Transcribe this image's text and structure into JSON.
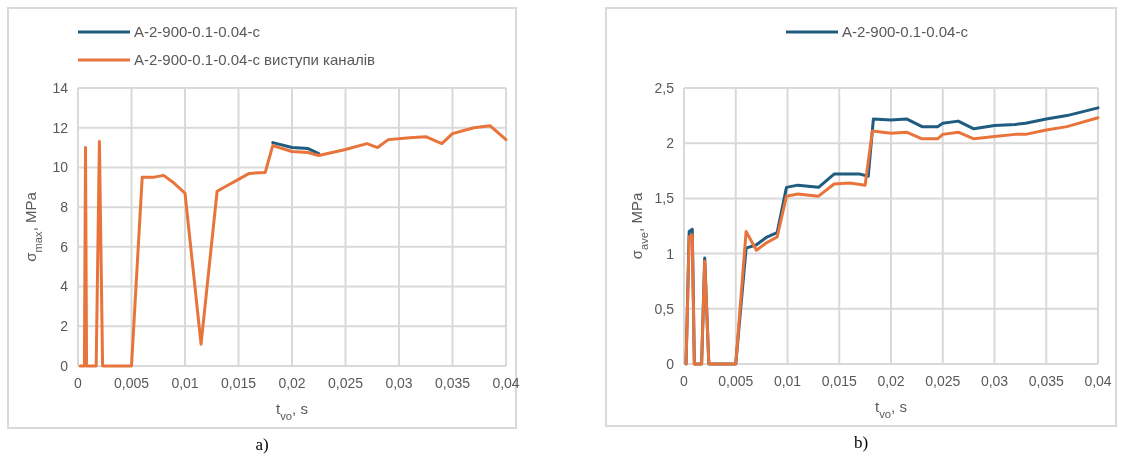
{
  "chart_data": [
    {
      "type": "line",
      "xlabel": "t$_{vo}$, s",
      "ylabel": "σ$_{max}$, MPa",
      "legend": "top",
      "grid": true,
      "annotations": [
        "a)"
      ],
      "xlim": [
        0,
        0.04
      ],
      "xticks": [
        0,
        {
          "value": 0.005,
          "label": "0,005"
        },
        {
          "value": 0.01,
          "label": "0,01"
        },
        {
          "value": 0.015,
          "label": "0,015"
        },
        {
          "value": 0.02,
          "label": "0,02"
        },
        {
          "value": 0.025,
          "label": "0,025"
        },
        {
          "value": 0.03,
          "label": "0,03"
        },
        {
          "value": 0.035,
          "label": "0,035"
        },
        {
          "value": 0.04,
          "label": "0,04"
        }
      ],
      "ylim": [
        0,
        14
      ],
      "yticks": [
        0,
        2,
        4,
        6,
        8,
        10,
        12,
        14
      ],
      "series": [
        {
          "name": "A-2-900-0.1-0.04-c",
          "color": "#1f5c7f",
          "x": [
            0.0182,
            0.02,
            0.0215,
            0.0225
          ],
          "values": [
            11.25,
            11,
            10.95,
            10.7
          ]
        },
        {
          "name": "A-2-900-0.1-0.04-c виступи каналів",
          "color": "#e8743b",
          "x": [
            0.0002,
            0.0006,
            0.0007,
            0.0008,
            0.0017,
            0.002,
            0.0023,
            0.005,
            0.006,
            0.007,
            0.008,
            0.009,
            0.01,
            0.0115,
            0.013,
            0.014,
            0.015,
            0.016,
            0.0175,
            0.0182,
            0.02,
            0.0215,
            0.0225,
            0.025,
            0.027,
            0.028,
            0.029,
            0.031,
            0.0325,
            0.034,
            0.035,
            0.037,
            0.0385,
            0.04
          ],
          "values": [
            0,
            0,
            11,
            0,
            0,
            11.3,
            0,
            0,
            9.5,
            9.5,
            9.6,
            9.2,
            8.7,
            1.1,
            8.8,
            9.1,
            9.4,
            9.7,
            9.75,
            11.1,
            10.8,
            10.75,
            10.6,
            10.9,
            11.2,
            11,
            11.4,
            11.5,
            11.55,
            11.2,
            11.7,
            12,
            12.1,
            11.4
          ]
        }
      ]
    },
    {
      "type": "line",
      "xlabel": "t$_{vo}$, s",
      "ylabel": "σ$_{ave}$, MPa",
      "legend": "top",
      "grid": true,
      "annotations": [
        "b)"
      ],
      "xlim": [
        0,
        0.04
      ],
      "xticks": [
        0,
        {
          "value": 0.005,
          "label": "0,005"
        },
        {
          "value": 0.01,
          "label": "0,01"
        },
        {
          "value": 0.015,
          "label": "0,015"
        },
        {
          "value": 0.02,
          "label": "0,02"
        },
        {
          "value": 0.025,
          "label": "0,025"
        },
        {
          "value": 0.03,
          "label": "0,03"
        },
        {
          "value": 0.035,
          "label": "0,035"
        },
        {
          "value": 0.04,
          "label": "0,04"
        }
      ],
      "ylim": [
        0,
        2.5
      ],
      "yticks": [
        0,
        {
          "value": 0.5,
          "label": "0,5"
        },
        1,
        {
          "value": 1.5,
          "label": "1,5"
        },
        2,
        {
          "value": 2.5,
          "label": "2,5"
        }
      ],
      "series": [
        {
          "name": "A-2-900-0.1-0.04-c",
          "color": "#1f5c7f",
          "x": [
            0.0002,
            0.0005,
            0.0008,
            0.001,
            0.0017,
            0.002,
            0.0024,
            0.005,
            0.006,
            0.007,
            0.008,
            0.009,
            0.0099,
            0.011,
            0.013,
            0.0145,
            0.017,
            0.0178,
            0.0183,
            0.02,
            0.0215,
            0.023,
            0.0245,
            0.025,
            0.0265,
            0.028,
            0.03,
            0.032,
            0.033,
            0.035,
            0.037,
            0.04
          ],
          "values": [
            0,
            1.2,
            1.22,
            0,
            0,
            0.96,
            0,
            0,
            1.05,
            1.08,
            1.15,
            1.19,
            1.6,
            1.62,
            1.6,
            1.72,
            1.72,
            1.7,
            2.22,
            2.21,
            2.22,
            2.15,
            2.15,
            2.18,
            2.2,
            2.13,
            2.16,
            2.17,
            2.18,
            2.22,
            2.25,
            2.32
          ]
        },
        {
          "color": "#e8743b",
          "x": [
            0.0002,
            0.0005,
            0.0008,
            0.001,
            0.0017,
            0.002,
            0.0024,
            0.005,
            0.006,
            0.007,
            0.008,
            0.009,
            0.0099,
            0.011,
            0.013,
            0.0145,
            0.016,
            0.0175,
            0.0182,
            0.02,
            0.0215,
            0.023,
            0.0245,
            0.025,
            0.0265,
            0.028,
            0.03,
            0.032,
            0.033,
            0.035,
            0.037,
            0.04
          ],
          "values": [
            0,
            1.15,
            1.17,
            0,
            0,
            0.93,
            0,
            0,
            1.2,
            1.03,
            1.1,
            1.15,
            1.52,
            1.54,
            1.52,
            1.63,
            1.64,
            1.62,
            2.11,
            2.09,
            2.1,
            2.04,
            2.04,
            2.08,
            2.1,
            2.04,
            2.06,
            2.08,
            2.08,
            2.12,
            2.15,
            2.23
          ]
        }
      ]
    }
  ]
}
